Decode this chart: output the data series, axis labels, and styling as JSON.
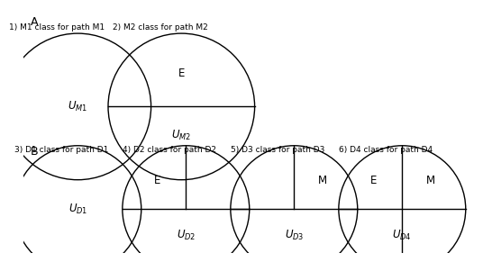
{
  "background_color": "#ffffff",
  "section_A_label": "A",
  "section_B_label": "B",
  "label_A1": "1) M1 class for path M1",
  "label_A2": "2) M2 class for path M2",
  "label_B1": "3) D1 class for path D1",
  "label_B2": "4) D2 class for path D2",
  "label_B3": "5) D3 class for path D3",
  "label_B4": "6) D4 class for path D4",
  "fontsize_label": 6.5,
  "fontsize_inner": 8.5,
  "fontsize_section": 9,
  "fontsize_subscript": 7
}
